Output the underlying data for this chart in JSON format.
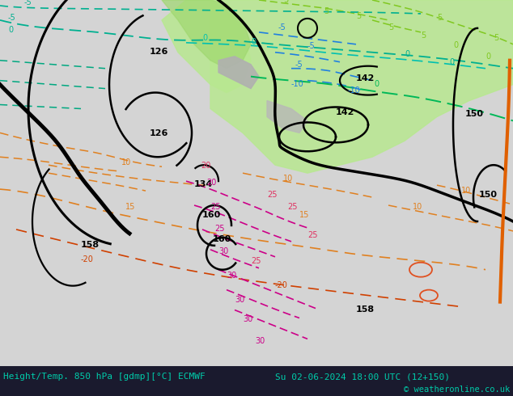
{
  "title_left": "Height/Temp. 850 hPa [gdmp][°C] ECMWF",
  "title_right": "Su 02-06-2024 18:00 UTC (12+150)",
  "copyright": "© weatheronline.co.uk",
  "map_bg": "#d8d8d8",
  "bottom_bar_color": "#1a1a2e",
  "bottom_text_color": "#00ccaa",
  "green_light": "#b8e890",
  "green_mid": "#a0d870",
  "gray_land": "#c0c0c0"
}
